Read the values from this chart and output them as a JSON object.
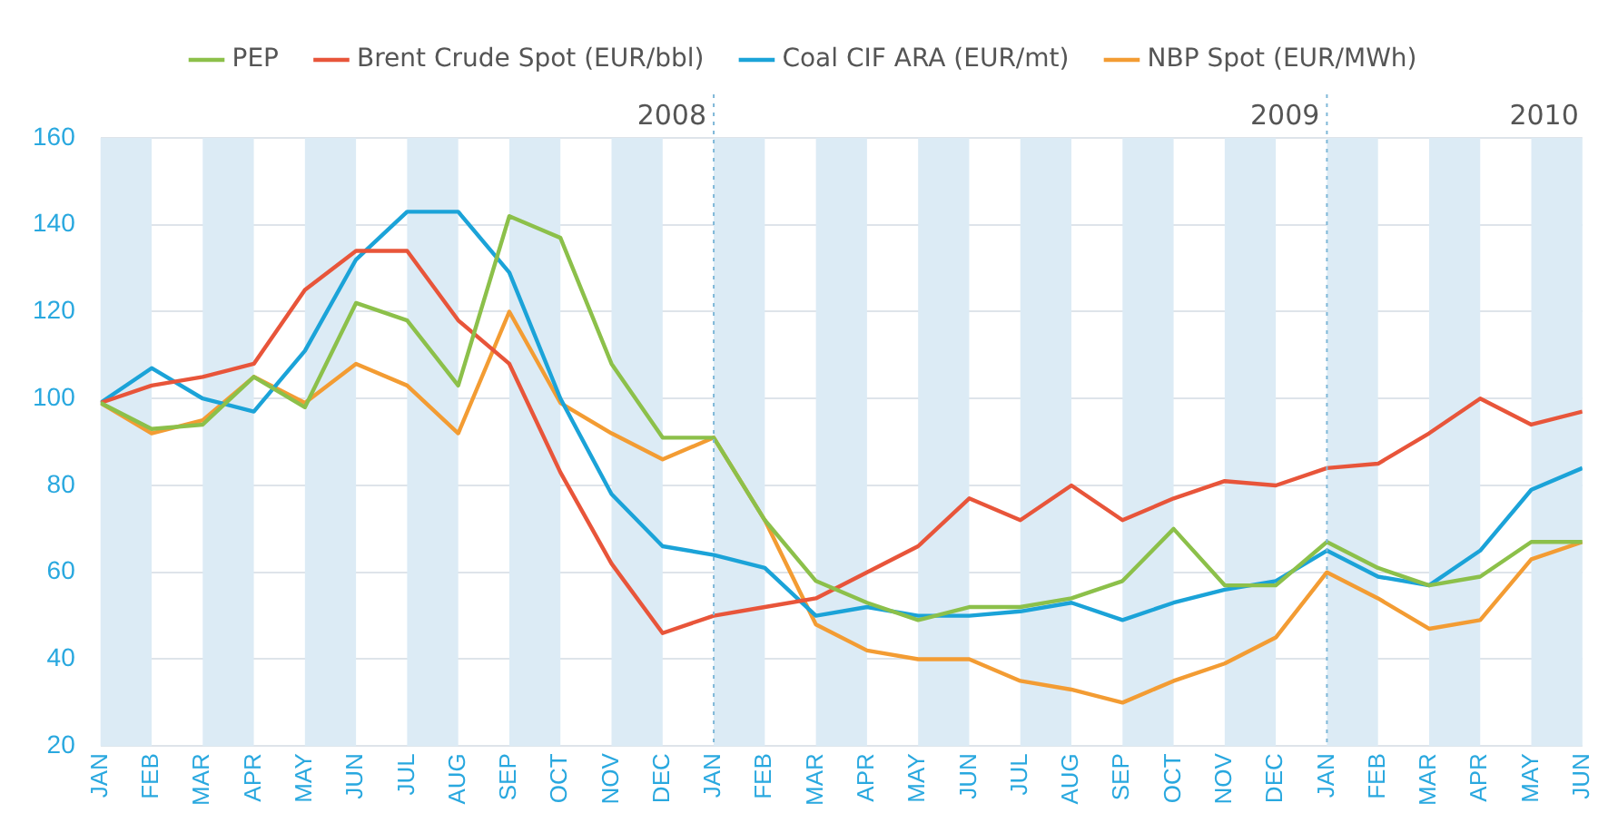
{
  "chart_data": {
    "type": "line",
    "x": [
      "2008-01",
      "2008-02",
      "2008-03",
      "2008-04",
      "2008-05",
      "2008-06",
      "2008-07",
      "2008-08",
      "2008-09",
      "2008-10",
      "2008-11",
      "2008-12",
      "2009-01",
      "2009-02",
      "2009-03",
      "2009-04",
      "2009-05",
      "2009-06",
      "2009-07",
      "2009-08",
      "2009-09",
      "2009-10",
      "2009-11",
      "2009-12",
      "2010-01",
      "2010-02",
      "2010-03",
      "2010-04",
      "2010-05",
      "2010-06"
    ],
    "series": [
      {
        "name": "PEP",
        "color": "#8cc04a",
        "values": [
          99,
          93,
          94,
          105,
          98,
          122,
          118,
          103,
          142,
          137,
          108,
          91,
          91,
          72,
          58,
          53,
          49,
          52,
          52,
          54,
          58,
          70,
          57,
          57,
          67,
          61,
          57,
          59,
          67,
          67
        ]
      },
      {
        "name": "Brent Crude Spot (EUR/bbl)",
        "color": "#e8553a",
        "values": [
          99,
          103,
          105,
          108,
          125,
          134,
          134,
          118,
          108,
          83,
          62,
          46,
          50,
          52,
          54,
          60,
          66,
          77,
          72,
          80,
          72,
          77,
          81,
          80,
          84,
          85,
          92,
          100,
          94,
          97
        ]
      },
      {
        "name": "Coal CIF ARA (EUR/mt)",
        "color": "#1ba3d8",
        "values": [
          99,
          107,
          100,
          97,
          111,
          132,
          143,
          143,
          129,
          100,
          78,
          66,
          64,
          61,
          50,
          52,
          50,
          50,
          51,
          53,
          49,
          53,
          56,
          58,
          65,
          59,
          57,
          65,
          79,
          84
        ]
      },
      {
        "name": "NBP Spot (EUR/MWh)",
        "color": "#f39c33",
        "values": [
          99,
          92,
          95,
          105,
          99,
          108,
          103,
          92,
          120,
          99,
          92,
          86,
          91,
          72,
          48,
          42,
          40,
          40,
          35,
          33,
          30,
          35,
          39,
          45,
          60,
          54,
          47,
          49,
          63,
          67
        ]
      }
    ],
    "xlim": [
      "2008-01",
      "2010-06"
    ],
    "xticks": [
      {
        "value": "2008-01",
        "label": "JAN"
      },
      {
        "value": "2008-02",
        "label": "FEB"
      },
      {
        "value": "2008-03",
        "label": "MAR"
      },
      {
        "value": "2008-04",
        "label": "APR"
      },
      {
        "value": "2008-05",
        "label": "MAY"
      },
      {
        "value": "2008-06",
        "label": "JUN"
      },
      {
        "value": "2008-07",
        "label": "JUL"
      },
      {
        "value": "2008-08",
        "label": "AUG"
      },
      {
        "value": "2008-09",
        "label": "SEP"
      },
      {
        "value": "2008-10",
        "label": "OCT"
      },
      {
        "value": "2008-11",
        "label": "NOV"
      },
      {
        "value": "2008-12",
        "label": "DEC"
      },
      {
        "value": "2009-01",
        "label": "JAN"
      },
      {
        "value": "2009-02",
        "label": "FEB"
      },
      {
        "value": "2009-03",
        "label": "MAR"
      },
      {
        "value": "2009-04",
        "label": "APR"
      },
      {
        "value": "2009-05",
        "label": "MAY"
      },
      {
        "value": "2009-06",
        "label": "JUN"
      },
      {
        "value": "2009-07",
        "label": "JUL"
      },
      {
        "value": "2009-08",
        "label": "AUG"
      },
      {
        "value": "2009-09",
        "label": "SEP"
      },
      {
        "value": "2009-10",
        "label": "OCT"
      },
      {
        "value": "2009-11",
        "label": "NOV"
      },
      {
        "value": "2009-12",
        "label": "DEC"
      },
      {
        "value": "2010-01",
        "label": "JAN"
      },
      {
        "value": "2010-02",
        "label": "FEB"
      },
      {
        "value": "2010-03",
        "label": "MAR"
      },
      {
        "value": "2010-04",
        "label": "APR"
      },
      {
        "value": "2010-05",
        "label": "MAY"
      },
      {
        "value": "2010-06",
        "label": "JUN"
      }
    ],
    "ylim": [
      20,
      160
    ],
    "yticks": [
      20,
      40,
      60,
      80,
      100,
      120,
      140,
      160
    ],
    "bands": [
      {
        "axis": "x",
        "from": "2008-01",
        "to": "2008-02",
        "color": "#dcebf5"
      },
      {
        "axis": "x",
        "from": "2008-03",
        "to": "2008-04",
        "color": "#dcebf5"
      },
      {
        "axis": "x",
        "from": "2008-05",
        "to": "2008-06",
        "color": "#dcebf5"
      },
      {
        "axis": "x",
        "from": "2008-07",
        "to": "2008-08",
        "color": "#dcebf5"
      },
      {
        "axis": "x",
        "from": "2008-09",
        "to": "2008-10",
        "color": "#dcebf5"
      },
      {
        "axis": "x",
        "from": "2008-11",
        "to": "2008-12",
        "color": "#dcebf5"
      },
      {
        "axis": "x",
        "from": "2009-01",
        "to": "2009-02",
        "color": "#dcebf5"
      },
      {
        "axis": "x",
        "from": "2009-03",
        "to": "2009-04",
        "color": "#dcebf5"
      },
      {
        "axis": "x",
        "from": "2009-05",
        "to": "2009-06",
        "color": "#dcebf5"
      },
      {
        "axis": "x",
        "from": "2009-07",
        "to": "2009-08",
        "color": "#dcebf5"
      },
      {
        "axis": "x",
        "from": "2009-09",
        "to": "2009-10",
        "color": "#dcebf5"
      },
      {
        "axis": "x",
        "from": "2009-11",
        "to": "2009-12",
        "color": "#dcebf5"
      },
      {
        "axis": "x",
        "from": "2010-01",
        "to": "2010-02",
        "color": "#dcebf5"
      },
      {
        "axis": "x",
        "from": "2010-03",
        "to": "2010-04",
        "color": "#dcebf5"
      },
      {
        "axis": "x",
        "from": "2010-05",
        "to": "2010-06",
        "color": "#dcebf5"
      }
    ],
    "ref_lines": [
      {
        "axis": "x",
        "value": "2009-01",
        "label": "2008",
        "color": "#7fb8d8",
        "line_style": "dotted"
      },
      {
        "axis": "x",
        "value": "2010-01",
        "label": "2009",
        "color": "#7fb8d8",
        "line_style": "dotted"
      }
    ],
    "annotations": [
      "2010"
    ],
    "grid": "y",
    "legend": "top",
    "marker": "none",
    "line_style": "solid"
  }
}
